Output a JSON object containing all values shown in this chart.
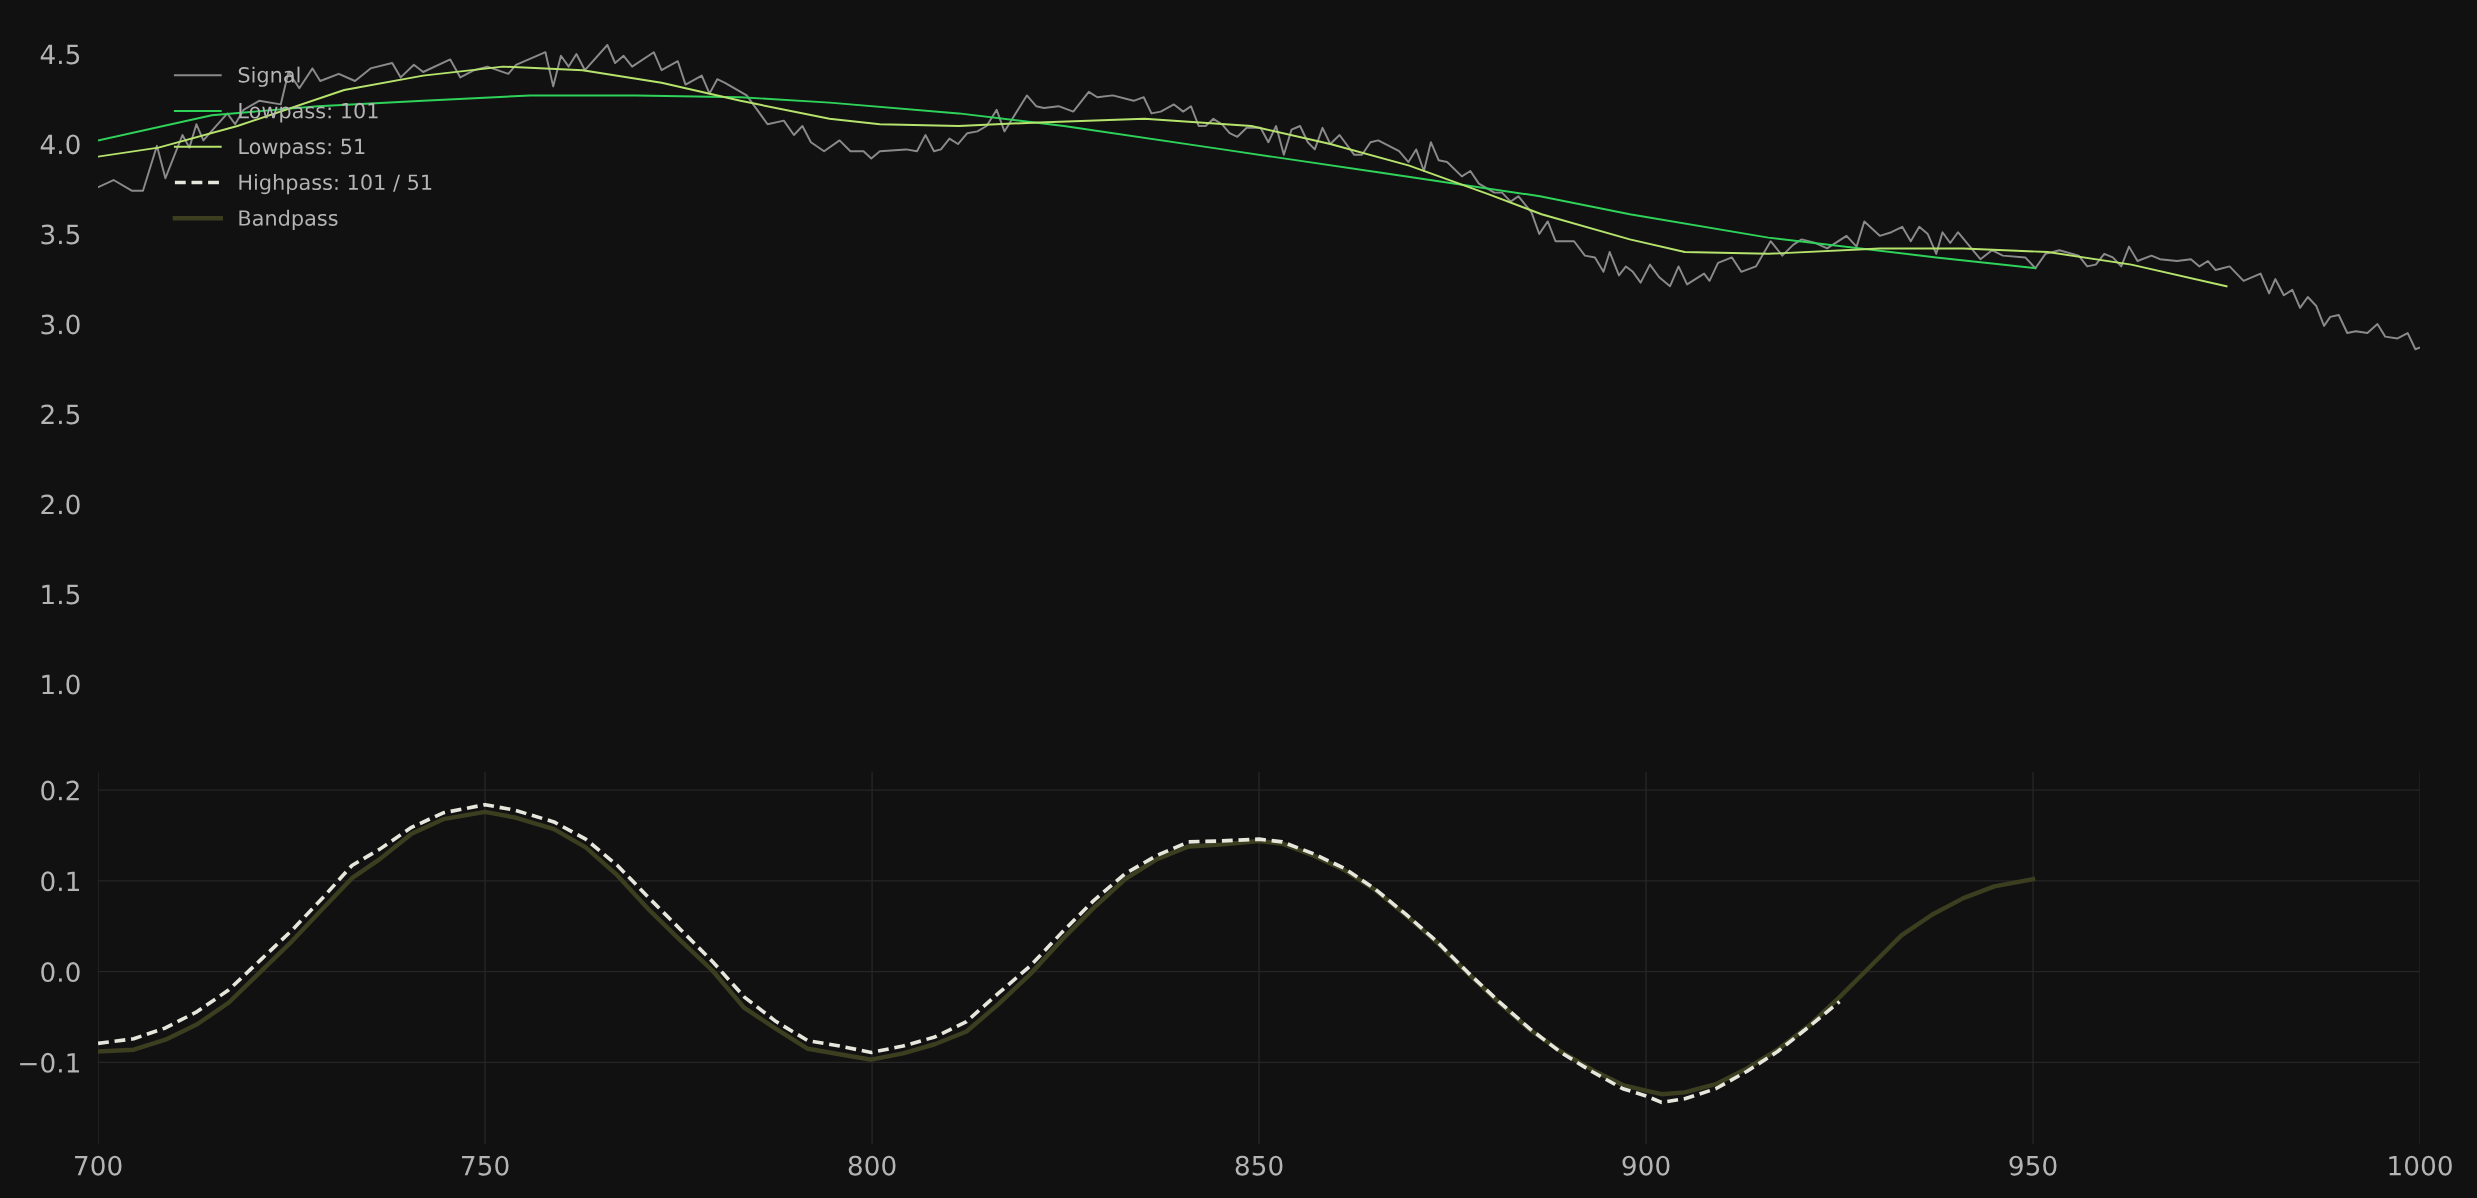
{
  "chart_data": [
    {
      "type": "line",
      "xlim": [
        700,
        1000
      ],
      "xticks": [
        700,
        750,
        800,
        850,
        900,
        950,
        1000
      ],
      "ylim": [
        1.0,
        4.8
      ],
      "yticks": [
        {
          "value": 1.0,
          "label": "1.0"
        },
        {
          "value": 1.5,
          "label": "1.5"
        },
        {
          "value": 2.0,
          "label": "2.0"
        },
        {
          "value": 2.5,
          "label": "2.5"
        },
        {
          "value": 3.0,
          "label": "3.0"
        },
        {
          "value": 3.5,
          "label": "3.5"
        },
        {
          "value": 4.0,
          "label": "4.0"
        },
        {
          "value": 4.5,
          "label": "4.5"
        }
      ],
      "tick_labels": "y",
      "grid": false,
      "legend": "top left",
      "series": [
        {
          "name": "Signal",
          "color": "#8a8a8a",
          "x": [
            700,
            702,
            704.4,
            705.8,
            707.6,
            708.7,
            710.9,
            711.8,
            712.7,
            713.6,
            716.7,
            717.7,
            718.8,
            720.8,
            723.6,
            724.6,
            726,
            727.7,
            728.7,
            731.1,
            733.2,
            735.2,
            738,
            739.1,
            740.8,
            742,
            745.5,
            746.8,
            748.6,
            750.3,
            753,
            754,
            757.8,
            758.8,
            759.8,
            760.8,
            761.8,
            762.9,
            765.8,
            766.8,
            767.9,
            769,
            771.8,
            772.8,
            774.9,
            775.9,
            778,
            779,
            780,
            781,
            783.8,
            786.5,
            788.6,
            789.9,
            791,
            792.1,
            793.8,
            795.8,
            797.2,
            798.9,
            799.9,
            801,
            804.4,
            805.8,
            806.9,
            808,
            808.9,
            810,
            811.1,
            812.3,
            813.6,
            814.8,
            816.1,
            817.1,
            820,
            821.2,
            822.2,
            824.1,
            826,
            828,
            829.1,
            831.1,
            833.8,
            835.1,
            836.1,
            837.3,
            839,
            840.2,
            841.2,
            842.2,
            843.1,
            844.1,
            845.2,
            846.2,
            847.2,
            848.4,
            850.2,
            851.2,
            852.2,
            853.2,
            854.2,
            855.3,
            856.3,
            857.2,
            858.2,
            859.2,
            860.4,
            862.3,
            863.3,
            864.4,
            865.4,
            868.1,
            869.3,
            870.3,
            871.3,
            872.2,
            873.2,
            874.3,
            876.2,
            877.3,
            878.4,
            880.4,
            881.4,
            882.5,
            883.5,
            885.2,
            886.2,
            887.3,
            888.3,
            890.7,
            892.1,
            893.4,
            894.5,
            895.3,
            896.5,
            897.4,
            898.3,
            899.3,
            900.5,
            901.7,
            903.1,
            904.2,
            905.3,
            907.5,
            908.2,
            909.3,
            911.1,
            912.3,
            914.2,
            916.1,
            917.6,
            919,
            920.1,
            921.9,
            923.4,
            925.9,
            927.2,
            928.2,
            930.2,
            931.7,
            933.1,
            934.2,
            935.3,
            936.4,
            937.5,
            938.3,
            939.3,
            940.3,
            943.2,
            944.7,
            946.1,
            949,
            950.3,
            951.6,
            953.4,
            955.9,
            957,
            958.1,
            959.2,
            960.3,
            961.4,
            962.4,
            963.5,
            965.3,
            966.4,
            968.6,
            970.4,
            971.5,
            972.6,
            973.6,
            975.4,
            977.2,
            979.4,
            980.5,
            981.3,
            982.4,
            983.5,
            984.5,
            985.5,
            986.6,
            987.6,
            988.4,
            989.5,
            990.6,
            991.7,
            993.2,
            994.5,
            995.5,
            997.1,
            998.4,
            999.4,
            1000
          ],
          "values": [
            3.76,
            3.8,
            3.74,
            3.74,
            3.99,
            3.81,
            4.05,
            3.98,
            4.11,
            4.02,
            4.17,
            4.11,
            4.19,
            4.24,
            4.22,
            4.4,
            4.31,
            4.42,
            4.35,
            4.39,
            4.35,
            4.42,
            4.45,
            4.37,
            4.44,
            4.4,
            4.47,
            4.37,
            4.41,
            4.43,
            4.39,
            4.44,
            4.51,
            4.32,
            4.49,
            4.43,
            4.5,
            4.41,
            4.55,
            4.45,
            4.49,
            4.43,
            4.51,
            4.41,
            4.46,
            4.33,
            4.38,
            4.28,
            4.36,
            4.34,
            4.27,
            4.11,
            4.13,
            4.05,
            4.1,
            4.01,
            3.96,
            4.02,
            3.96,
            3.96,
            3.92,
            3.96,
            3.97,
            3.96,
            4.05,
            3.96,
            3.97,
            4.03,
            4.0,
            4.06,
            4.07,
            4.1,
            4.19,
            4.07,
            4.27,
            4.21,
            4.2,
            4.21,
            4.18,
            4.29,
            4.26,
            4.27,
            4.24,
            4.26,
            4.17,
            4.18,
            4.22,
            4.18,
            4.21,
            4.1,
            4.1,
            4.14,
            4.11,
            4.06,
            4.04,
            4.09,
            4.09,
            4.01,
            4.1,
            3.94,
            4.08,
            4.1,
            4.01,
            3.97,
            4.09,
            4.0,
            4.05,
            3.94,
            3.94,
            4.01,
            4.02,
            3.96,
            3.9,
            3.97,
            3.85,
            4.01,
            3.91,
            3.9,
            3.82,
            3.85,
            3.78,
            3.73,
            3.73,
            3.68,
            3.71,
            3.62,
            3.5,
            3.57,
            3.46,
            3.46,
            3.38,
            3.37,
            3.29,
            3.4,
            3.27,
            3.32,
            3.29,
            3.23,
            3.33,
            3.26,
            3.21,
            3.32,
            3.22,
            3.28,
            3.24,
            3.34,
            3.37,
            3.29,
            3.32,
            3.46,
            3.38,
            3.44,
            3.47,
            3.45,
            3.42,
            3.49,
            3.43,
            3.57,
            3.49,
            3.51,
            3.54,
            3.46,
            3.54,
            3.5,
            3.39,
            3.51,
            3.45,
            3.51,
            3.36,
            3.41,
            3.38,
            3.37,
            3.31,
            3.39,
            3.41,
            3.38,
            3.32,
            3.33,
            3.39,
            3.37,
            3.32,
            3.43,
            3.35,
            3.38,
            3.36,
            3.35,
            3.36,
            3.32,
            3.35,
            3.3,
            3.32,
            3.24,
            3.28,
            3.17,
            3.25,
            3.16,
            3.19,
            3.09,
            3.15,
            3.1,
            2.99,
            3.04,
            3.05,
            2.95,
            2.96,
            2.95,
            3.0,
            2.93,
            2.92,
            2.95,
            2.86,
            2.87
          ]
        },
        {
          "name": "Lowpass: 101",
          "color": "#2fd35a",
          "x": [
            700,
            714.7,
            728.4,
            742,
            755.8,
            769.5,
            783,
            794.5,
            811.2,
            824.8,
            845.3,
            865.8,
            886.3,
            897.9,
            915.8,
            937.5,
            950.3
          ],
          "values": [
            4.02,
            4.16,
            4.21,
            4.24,
            4.27,
            4.27,
            4.26,
            4.23,
            4.17,
            4.1,
            3.97,
            3.84,
            3.71,
            3.61,
            3.48,
            3.37,
            3.31
          ]
        },
        {
          "name": "Lowpass: 51",
          "color": "#b6e36c",
          "x": [
            700,
            707.8,
            718,
            731.8,
            742,
            752.3,
            762.6,
            772.8,
            783,
            794.5,
            801,
            811.2,
            821.5,
            835.2,
            849,
            859.2,
            869.4,
            879.7,
            886.5,
            897.9,
            905,
            915.8,
            930.2,
            941,
            951.9,
            962.7,
            975
          ],
          "values": [
            3.93,
            3.98,
            4.1,
            4.3,
            4.38,
            4.43,
            4.41,
            4.34,
            4.24,
            4.14,
            4.11,
            4.1,
            4.12,
            4.14,
            4.1,
            4.0,
            3.88,
            3.72,
            3.61,
            3.47,
            3.4,
            3.39,
            3.42,
            3.42,
            3.4,
            3.33,
            3.21
          ]
        }
      ]
    },
    {
      "type": "line",
      "xlim": [
        700,
        1000
      ],
      "xticks": [
        700,
        750,
        800,
        850,
        900,
        950,
        1000
      ],
      "ylim": [
        -0.19,
        0.22
      ],
      "yticks": [
        {
          "value": -0.1,
          "label": "−0.1"
        },
        {
          "value": 0.0,
          "label": "0.0"
        },
        {
          "value": 0.1,
          "label": "0.1"
        },
        {
          "value": 0.2,
          "label": "0.2"
        }
      ],
      "grid": true,
      "legend": "top left",
      "series": [
        {
          "name": "Bandpass",
          "color": "#3c3e20",
          "x": [
            700,
            704.6,
            708.7,
            712.8,
            716.9,
            721,
            725.1,
            729.2,
            732.8,
            736.4,
            740.5,
            744.6,
            750,
            753.8,
            758.9,
            763,
            767.1,
            771.2,
            775.3,
            779.4,
            783.5,
            787.6,
            791.7,
            795.8,
            799.9,
            804,
            808.1,
            812.2,
            816.3,
            820.4,
            824.5,
            828.6,
            832.7,
            836.8,
            840.9,
            845,
            850,
            853,
            857,
            861,
            865,
            869,
            873,
            877,
            881,
            885,
            889,
            893,
            897,
            900,
            902,
            905,
            909,
            913,
            917,
            921,
            925,
            929,
            933,
            937,
            941,
            945,
            950
          ],
          "values": [
            -0.088,
            -0.086,
            -0.075,
            -0.058,
            -0.034,
            0.0,
            0.034,
            0.071,
            0.103,
            0.124,
            0.152,
            0.168,
            0.176,
            0.17,
            0.157,
            0.137,
            0.106,
            0.068,
            0.034,
            0.001,
            -0.04,
            -0.063,
            -0.085,
            -0.091,
            -0.097,
            -0.09,
            -0.08,
            -0.066,
            -0.036,
            -0.003,
            0.035,
            0.07,
            0.102,
            0.124,
            0.138,
            0.14,
            0.144,
            0.141,
            0.128,
            0.112,
            0.09,
            0.062,
            0.032,
            -0.002,
            -0.034,
            -0.064,
            -0.088,
            -0.108,
            -0.125,
            -0.131,
            -0.135,
            -0.133,
            -0.124,
            -0.107,
            -0.086,
            -0.06,
            -0.028,
            0.006,
            0.04,
            0.063,
            0.081,
            0.094,
            0.102
          ]
        },
        {
          "name": "Highpass: 101 / 51",
          "color": "#e6e6dc",
          "line_style": "dashed",
          "x": [
            700,
            704.6,
            708.7,
            712.8,
            716.9,
            721,
            725.1,
            729.2,
            732.8,
            736.4,
            740.5,
            744.6,
            750,
            753.8,
            758.9,
            763,
            767.1,
            771.2,
            775.3,
            779.4,
            783.5,
            787.6,
            791.7,
            795.8,
            799.9,
            804,
            808.1,
            812.2,
            816.3,
            820.4,
            824.5,
            828.6,
            832.7,
            836.8,
            840.9,
            845,
            850,
            853,
            857,
            861,
            865,
            869,
            873,
            877,
            881,
            885,
            889,
            893,
            897,
            900,
            902,
            905,
            909,
            913,
            917,
            921,
            925
          ],
          "values": [
            -0.079,
            -0.074,
            -0.062,
            -0.044,
            -0.02,
            0.013,
            0.046,
            0.083,
            0.117,
            0.135,
            0.159,
            0.175,
            0.184,
            0.178,
            0.165,
            0.146,
            0.117,
            0.081,
            0.046,
            0.011,
            -0.028,
            -0.055,
            -0.076,
            -0.082,
            -0.089,
            -0.082,
            -0.072,
            -0.055,
            -0.024,
            0.006,
            0.043,
            0.078,
            0.108,
            0.128,
            0.143,
            0.144,
            0.146,
            0.143,
            0.13,
            0.114,
            0.091,
            0.063,
            0.033,
            -0.001,
            -0.033,
            -0.063,
            -0.089,
            -0.11,
            -0.129,
            -0.137,
            -0.144,
            -0.14,
            -0.129,
            -0.11,
            -0.088,
            -0.061,
            -0.033
          ]
        }
      ]
    }
  ]
}
